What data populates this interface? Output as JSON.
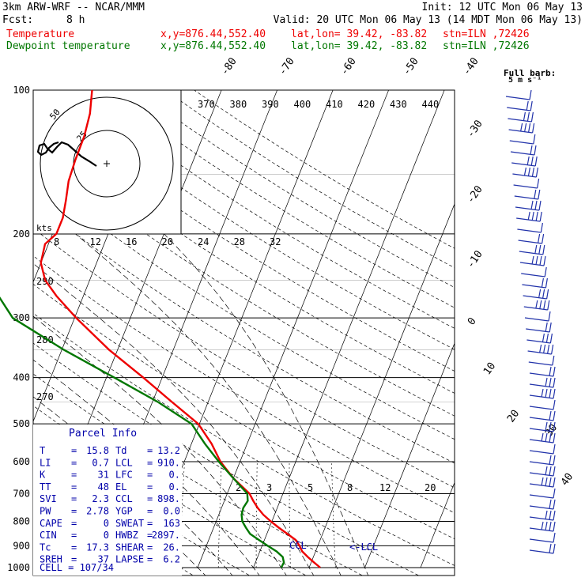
{
  "header": {
    "model": "3km ARW-WRF -- NCAR/MMM",
    "init": "Init: 12 UTC Mon 06 May 13",
    "fcst_label": "Fcst:",
    "fcst_value": "8 h",
    "valid": "Valid: 20 UTC Mon 06 May 13 (14 MDT Mon 06 May 13)",
    "temp_label": "Temperature",
    "dew_label": "Dewpoint temperature",
    "xy": "x,y=876.44,552.40",
    "latlon": "lat,lon= 39.42, -83.82",
    "stn": "stn=ILN ,72426"
  },
  "colors": {
    "temperature": "#ee0000",
    "dewpoint": "#007700",
    "parcel": "#0000aa"
  },
  "hodograph": {
    "units": "kts",
    "rings": [
      "25",
      "50"
    ],
    "x_ticks": [
      "8",
      "12",
      "16",
      "20",
      "24",
      "28",
      "32"
    ]
  },
  "parcel_info": {
    "title": "Parcel Info",
    "rows": [
      [
        "T",
        "15.8",
        "Td",
        "13.2"
      ],
      [
        "LI",
        "0.7",
        "LCL",
        "910."
      ],
      [
        "K",
        "31",
        "LFC",
        "0."
      ],
      [
        "TT",
        "48",
        "EL",
        "0."
      ],
      [
        "SVI",
        "2.3",
        "CCL",
        "898."
      ],
      [
        "PW",
        "2.78",
        "YGP",
        "0.0"
      ],
      [
        "CAPE",
        "0",
        "SWEAT",
        "163"
      ],
      [
        "CIN",
        "0",
        "HWBZ",
        "2897."
      ],
      [
        "Tc",
        "17.3",
        "SHEAR",
        "26."
      ],
      [
        "SREH",
        "37",
        "LAPSE",
        "6.2"
      ]
    ],
    "cell_label": "CELL = 107/34"
  },
  "annotations": {
    "ccl": "CCL",
    "lcl": "<-LCL",
    "barb_legend": "Full barb:",
    "barb_legend_units": "5 m s⁻¹"
  },
  "chart_data": {
    "type": "line",
    "title": "",
    "y_axis": "pressure (hPa), log scale, decreasing upward",
    "ylim": [
      1000,
      100
    ],
    "pressure_levels": [
      100,
      200,
      300,
      400,
      500,
      600,
      700,
      800,
      900,
      1000
    ],
    "isotherm_labels": [
      -80,
      -70,
      -60,
      -50,
      -40,
      -30,
      -20,
      -10,
      0,
      10,
      20,
      30,
      40
    ],
    "theta_labels_top": [
      370,
      380,
      390,
      400,
      410,
      420,
      430,
      440
    ],
    "theta_labels_left": [
      290,
      280,
      270
    ],
    "mixing_ratio_labels": [
      "2",
      "3",
      "5",
      "8",
      "12",
      "20"
    ],
    "series": [
      {
        "name": "Temperature",
        "pressure": [
          1000,
          975,
          950,
          925,
          900,
          875,
          850,
          825,
          800,
          775,
          750,
          725,
          700,
          650,
          600,
          550,
          500,
          450,
          400,
          350,
          300,
          270,
          250,
          230,
          210,
          200,
          185,
          170,
          155,
          140,
          125,
          112,
          100
        ],
        "temperature": [
          22,
          20.5,
          19.0,
          17.6,
          16.7,
          15.6,
          13.7,
          11.7,
          9.8,
          8.0,
          6.5,
          5.2,
          4.0,
          0,
          -3.5,
          -6.4,
          -10.2,
          -16.5,
          -23.4,
          -31.5,
          -39.7,
          -44.8,
          -48.0,
          -50.0,
          -50.6,
          -49.3,
          -49.3,
          -50.0,
          -50.9,
          -51.2,
          -51.3,
          -51.9,
          -53.2
        ]
      },
      {
        "name": "Dewpoint temperature",
        "pressure": [
          1000,
          975,
          950,
          925,
          900,
          875,
          850,
          825,
          800,
          775,
          750,
          725,
          700,
          650,
          600,
          550,
          500,
          450,
          400,
          350,
          300,
          270,
          250,
          230,
          210,
          200,
          185,
          170,
          155,
          140,
          125,
          112,
          100
        ],
        "temperature": [
          15,
          15.1,
          14.5,
          13.0,
          11.0,
          9.0,
          7.0,
          5.8,
          4.7,
          4.1,
          3.9,
          4.2,
          3.6,
          0,
          -3.8,
          -7.6,
          -11.4,
          -19.0,
          -28.6,
          -39.6,
          -51.1,
          -55.2,
          -58.3,
          -61.2,
          -62.9,
          -63.7,
          -64.6,
          -67.6,
          -71.3,
          -74.5,
          -78.7,
          -81.1,
          -82.5
        ]
      }
    ]
  }
}
